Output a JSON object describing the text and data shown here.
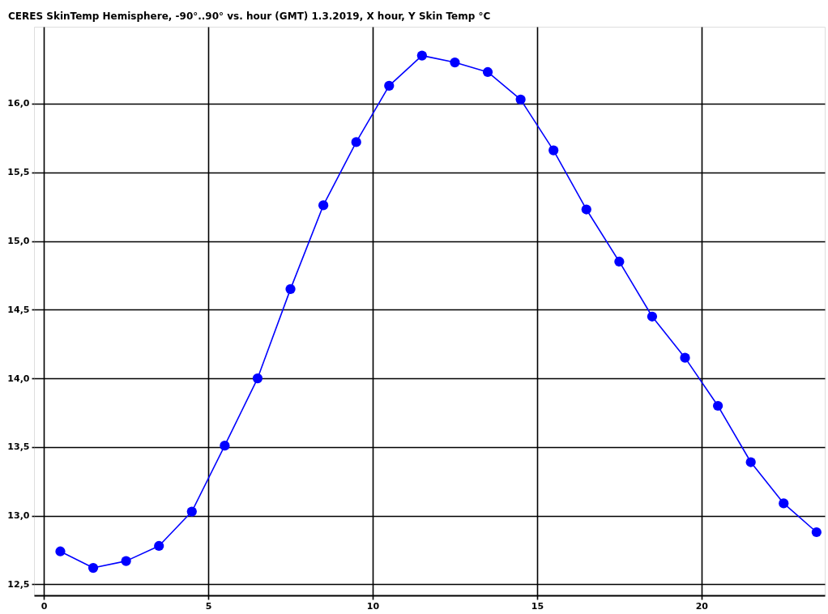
{
  "chart_data": {
    "type": "line",
    "title": "CERES SkinTemp Hemisphere, -90°..90° vs. hour (GMT) 1.3.2019, X hour, Y Skin Temp °C",
    "x": [
      0.5,
      1.5,
      2.5,
      3.5,
      4.5,
      5.5,
      6.5,
      7.5,
      8.5,
      9.5,
      10.5,
      11.5,
      12.5,
      13.5,
      14.5,
      15.5,
      16.5,
      17.5,
      18.5,
      19.5,
      20.5,
      21.5,
      22.5,
      23.5
    ],
    "series": [
      {
        "color": "#0000ff",
        "values": [
          12.74,
          12.62,
          12.67,
          12.78,
          13.03,
          13.51,
          14.0,
          14.65,
          15.26,
          15.72,
          16.13,
          16.35,
          16.3,
          16.23,
          16.03,
          15.66,
          15.23,
          14.85,
          14.45,
          14.15,
          13.8,
          13.39,
          13.09,
          12.88
        ]
      }
    ],
    "xlim": [
      -0.3,
      23.75
    ],
    "ylim": [
      12.42,
      16.56
    ],
    "xticks": [
      0,
      5,
      10,
      15,
      20
    ],
    "yticks": [
      {
        "value": 12.5,
        "label": "12,5"
      },
      {
        "value": 13,
        "label": "13,0"
      },
      {
        "value": 13.5,
        "label": "13,5"
      },
      {
        "value": 14,
        "label": "14,0"
      },
      {
        "value": 14.5,
        "label": "14,5"
      },
      {
        "value": 15,
        "label": "15,0"
      },
      {
        "value": 15.5,
        "label": "15,5"
      },
      {
        "value": 16,
        "label": "16,0"
      }
    ],
    "grid": true,
    "marker": "circle",
    "line_style": "solid"
  }
}
